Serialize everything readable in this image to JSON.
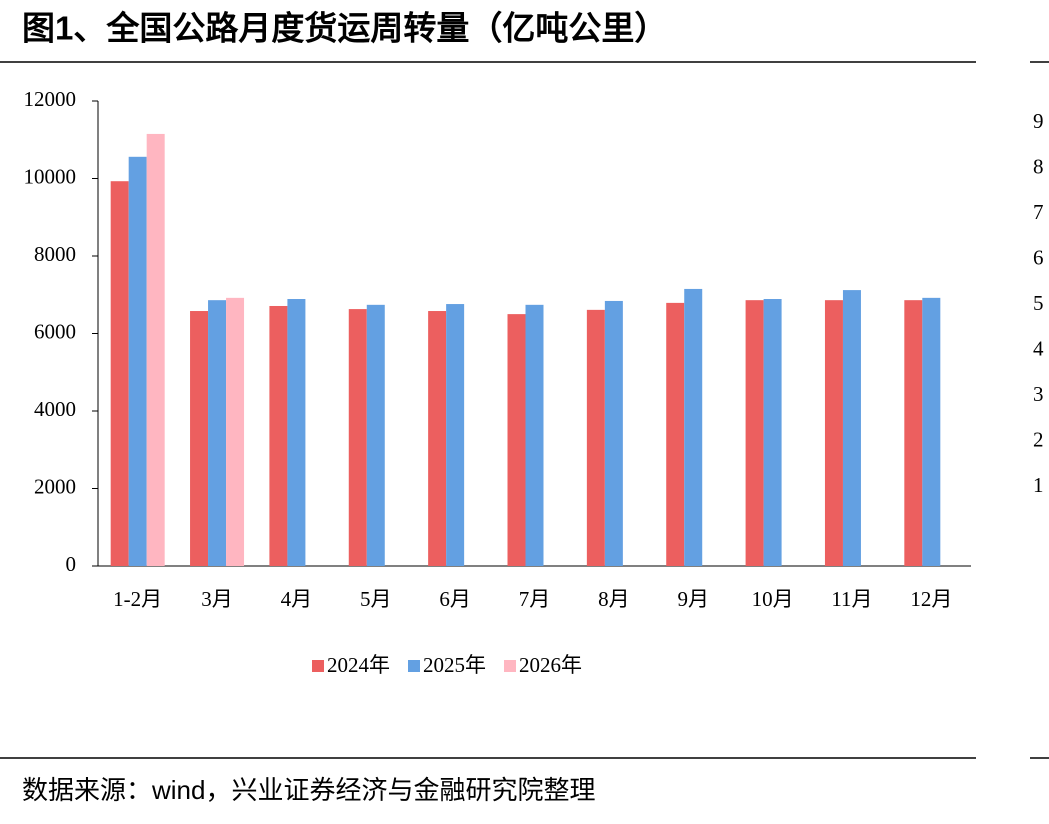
{
  "chart_data": {
    "type": "bar",
    "title": "图1、全国公路月度货运周转量（亿吨公里）",
    "categories": [
      "1-2月",
      "3月",
      "4月",
      "5月",
      "6月",
      "7月",
      "8月",
      "9月",
      "10月",
      "11月",
      "12月"
    ],
    "series": [
      {
        "name": "2024年",
        "color": "#ec5f5f",
        "values": [
          9930,
          6580,
          6710,
          6630,
          6580,
          6500,
          6610,
          6790,
          6860,
          6860,
          6860
        ]
      },
      {
        "name": "2025年",
        "color": "#63a0e2",
        "values": [
          10560,
          6860,
          6890,
          6740,
          6760,
          6740,
          6840,
          7150,
          6890,
          7120,
          6920
        ]
      },
      {
        "name": "2026年",
        "color": "#ffb6c1",
        "values": [
          11150,
          6920,
          null,
          null,
          null,
          null,
          null,
          null,
          null,
          null,
          null
        ]
      }
    ],
    "ylim": [
      0,
      12000
    ],
    "yticks": [
      0,
      2000,
      4000,
      6000,
      8000,
      10000,
      12000
    ],
    "legend": "bottom",
    "source": "数据来源：wind，兴业证券经济与金融研究院整理"
  },
  "right_panel": {
    "tick_labels": [
      "9",
      "8",
      "7",
      "6",
      "5",
      "4",
      "3",
      "2",
      "1"
    ]
  }
}
